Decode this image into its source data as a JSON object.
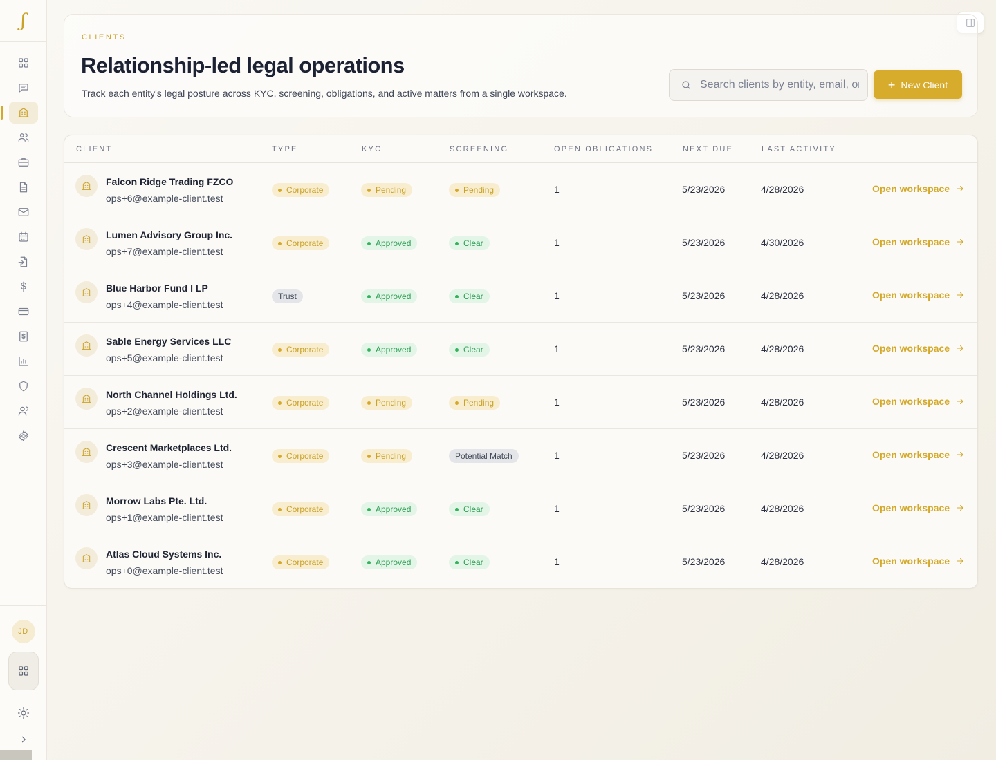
{
  "sidebar": {
    "logo": "ʃ",
    "nav": [
      {
        "icon": "dashboard-grid-icon"
      },
      {
        "icon": "message-square-icon"
      },
      {
        "icon": "building-icon",
        "active": true
      },
      {
        "icon": "users-icon"
      },
      {
        "icon": "briefcase-icon"
      },
      {
        "icon": "file-text-icon"
      },
      {
        "icon": "mail-icon"
      },
      {
        "icon": "calendar-icon"
      },
      {
        "icon": "file-import-icon"
      },
      {
        "icon": "dollar-icon"
      },
      {
        "icon": "credit-card-icon"
      },
      {
        "icon": "receipt-dollar-icon"
      },
      {
        "icon": "bar-chart-icon"
      },
      {
        "icon": "shield-icon"
      },
      {
        "icon": "contacts-icon"
      },
      {
        "icon": "settings-gear-icon"
      }
    ],
    "avatar_initials": "JD"
  },
  "header": {
    "eyebrow": "CLIENTS",
    "title": "Relationship-led legal operations",
    "subtitle": "Track each entity's legal posture across KYC, screening, obligations, and active matters from a single workspace.",
    "search_placeholder": "Search clients by entity, email, or ID",
    "new_client_label": "New Client"
  },
  "table": {
    "columns": [
      "CLIENT",
      "TYPE",
      "KYC",
      "SCREENING",
      "OPEN OBLIGATIONS",
      "NEXT DUE",
      "LAST ACTIVITY"
    ],
    "action_label": "Open workspace",
    "rows": [
      {
        "name": "Falcon Ridge Trading FZCO",
        "email": "ops+6@example-client.test",
        "type": "Corporate",
        "kyc": "Pending",
        "screening": "Pending",
        "obligations": "1",
        "next_due": "5/23/2026",
        "last_activity": "4/28/2026"
      },
      {
        "name": "Lumen Advisory Group Inc.",
        "email": "ops+7@example-client.test",
        "type": "Corporate",
        "kyc": "Approved",
        "screening": "Clear",
        "obligations": "1",
        "next_due": "5/23/2026",
        "last_activity": "4/30/2026"
      },
      {
        "name": "Blue Harbor Fund I LP",
        "email": "ops+4@example-client.test",
        "type": "Trust",
        "kyc": "Approved",
        "screening": "Clear",
        "obligations": "1",
        "next_due": "5/23/2026",
        "last_activity": "4/28/2026"
      },
      {
        "name": "Sable Energy Services LLC",
        "email": "ops+5@example-client.test",
        "type": "Corporate",
        "kyc": "Approved",
        "screening": "Clear",
        "obligations": "1",
        "next_due": "5/23/2026",
        "last_activity": "4/28/2026"
      },
      {
        "name": "North Channel Holdings Ltd.",
        "email": "ops+2@example-client.test",
        "type": "Corporate",
        "kyc": "Pending",
        "screening": "Pending",
        "obligations": "1",
        "next_due": "5/23/2026",
        "last_activity": "4/28/2026"
      },
      {
        "name": "Crescent Marketplaces Ltd.",
        "email": "ops+3@example-client.test",
        "type": "Corporate",
        "kyc": "Pending",
        "screening": "Potential Match",
        "obligations": "1",
        "next_due": "5/23/2026",
        "last_activity": "4/28/2026"
      },
      {
        "name": "Morrow Labs Pte. Ltd.",
        "email": "ops+1@example-client.test",
        "type": "Corporate",
        "kyc": "Approved",
        "screening": "Clear",
        "obligations": "1",
        "next_due": "5/23/2026",
        "last_activity": "4/28/2026"
      },
      {
        "name": "Atlas Cloud Systems Inc.",
        "email": "ops+0@example-client.test",
        "type": "Corporate",
        "kyc": "Approved",
        "screening": "Clear",
        "obligations": "1",
        "next_due": "5/23/2026",
        "last_activity": "4/28/2026"
      }
    ]
  },
  "colors": {
    "accent": "#d4a92a",
    "approved": "#2f9e55",
    "neutral": "#444b5a"
  }
}
